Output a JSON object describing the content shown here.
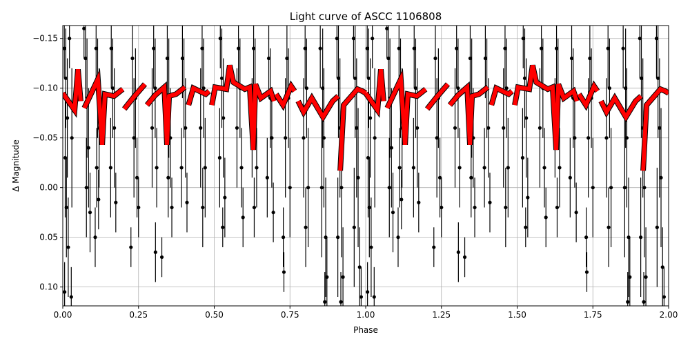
{
  "chart_data": {
    "type": "scatter",
    "title": "Light curve of ASCC 1106808",
    "xlabel": "Phase",
    "ylabel": "Δ Magnitude",
    "xlim": [
      0,
      2
    ],
    "ylim": [
      0.119,
      -0.163
    ],
    "y_inverted": true,
    "grid": true,
    "x_ticks": [
      "0.00",
      "0.25",
      "0.50",
      "0.75",
      "1.00",
      "1.25",
      "1.50",
      "1.75",
      "2.00"
    ],
    "x_tick_values": [
      0,
      0.25,
      0.5,
      0.75,
      1,
      1.25,
      1.5,
      1.75,
      2
    ],
    "y_ticks": [
      "−0.15",
      "−0.10",
      "−0.05",
      "0.00",
      "0.05",
      "0.10"
    ],
    "y_tick_values": [
      -0.15,
      -0.1,
      -0.05,
      0,
      0.05,
      0.1
    ],
    "colors": {
      "data": "#000000",
      "model": "#ff0000",
      "grid": "#b0b0b0"
    },
    "series": [
      {
        "kind": "data-with-errorbars",
        "repeat_period": 1,
        "points": [
          [
            0.005,
            -0.14,
            0.03
          ],
          [
            0.01,
            -0.11,
            0.05
          ],
          [
            0.015,
            -0.07,
            0.06
          ],
          [
            0.008,
            -0.03,
            0.06
          ],
          [
            0.012,
            0.02,
            0.05
          ],
          [
            0.018,
            0.06,
            0.05
          ],
          [
            0.006,
            0.105,
            0.03
          ],
          [
            0.028,
            0.11,
            0.03
          ],
          [
            0.022,
            -0.15,
            0.03
          ],
          [
            0.03,
            -0.05,
            0.07
          ],
          [
            0.075,
            -0.13,
            0.04
          ],
          [
            0.08,
            -0.09,
            0.06
          ],
          [
            0.085,
            -0.04,
            0.06
          ],
          [
            0.078,
            0.0,
            0.05
          ],
          [
            0.09,
            0.025,
            0.04
          ],
          [
            0.07,
            -0.16,
            0.03
          ],
          [
            0.11,
            -0.14,
            0.04
          ],
          [
            0.115,
            -0.1,
            0.05
          ],
          [
            0.12,
            -0.06,
            0.06
          ],
          [
            0.112,
            -0.02,
            0.04
          ],
          [
            0.118,
            0.012,
            0.03
          ],
          [
            0.107,
            0.05,
            0.03
          ],
          [
            0.16,
            -0.14,
            0.04
          ],
          [
            0.165,
            -0.1,
            0.05
          ],
          [
            0.17,
            -0.06,
            0.06
          ],
          [
            0.158,
            -0.02,
            0.05
          ],
          [
            0.175,
            0.015,
            0.03
          ],
          [
            0.23,
            -0.13,
            0.04
          ],
          [
            0.24,
            -0.09,
            0.05
          ],
          [
            0.235,
            -0.05,
            0.06
          ],
          [
            0.245,
            -0.01,
            0.04
          ],
          [
            0.25,
            0.02,
            0.03
          ],
          [
            0.225,
            0.06,
            0.02
          ],
          [
            0.3,
            -0.14,
            0.04
          ],
          [
            0.305,
            -0.1,
            0.05
          ],
          [
            0.295,
            -0.06,
            0.06
          ],
          [
            0.31,
            -0.02,
            0.04
          ],
          [
            0.306,
            0.065,
            0.03
          ],
          [
            0.327,
            0.07,
            0.02
          ],
          [
            0.345,
            -0.13,
            0.04
          ],
          [
            0.35,
            -0.09,
            0.06
          ],
          [
            0.355,
            -0.05,
            0.05
          ],
          [
            0.348,
            -0.01,
            0.04
          ],
          [
            0.36,
            0.02,
            0.03
          ],
          [
            0.395,
            -0.13,
            0.04
          ],
          [
            0.4,
            -0.1,
            0.05
          ],
          [
            0.405,
            -0.06,
            0.05
          ],
          [
            0.392,
            -0.02,
            0.04
          ],
          [
            0.41,
            0.015,
            0.03
          ],
          [
            0.46,
            -0.14,
            0.04
          ],
          [
            0.465,
            -0.1,
            0.05
          ],
          [
            0.455,
            -0.06,
            0.06
          ],
          [
            0.47,
            -0.02,
            0.05
          ],
          [
            0.462,
            0.02,
            0.04
          ],
          [
            0.52,
            -0.15,
            0.03
          ],
          [
            0.525,
            -0.11,
            0.05
          ],
          [
            0.53,
            -0.07,
            0.06
          ],
          [
            0.518,
            -0.03,
            0.05
          ],
          [
            0.535,
            0.01,
            0.04
          ],
          [
            0.528,
            0.04,
            0.02
          ],
          [
            0.58,
            -0.14,
            0.04
          ],
          [
            0.585,
            -0.1,
            0.05
          ],
          [
            0.575,
            -0.06,
            0.06
          ],
          [
            0.59,
            -0.02,
            0.04
          ],
          [
            0.595,
            0.03,
            0.03
          ],
          [
            0.63,
            -0.14,
            0.04
          ],
          [
            0.635,
            -0.1,
            0.05
          ],
          [
            0.625,
            -0.06,
            0.05
          ],
          [
            0.64,
            -0.02,
            0.04
          ],
          [
            0.632,
            0.02,
            0.03
          ],
          [
            0.68,
            -0.13,
            0.04
          ],
          [
            0.685,
            -0.09,
            0.05
          ],
          [
            0.69,
            -0.05,
            0.05
          ],
          [
            0.675,
            -0.01,
            0.04
          ],
          [
            0.695,
            0.025,
            0.03
          ],
          [
            0.74,
            -0.13,
            0.04
          ],
          [
            0.745,
            -0.09,
            0.05
          ],
          [
            0.735,
            -0.05,
            0.06
          ],
          [
            0.75,
            0.0,
            0.05
          ],
          [
            0.728,
            0.05,
            0.03
          ],
          [
            0.73,
            0.085,
            0.02
          ],
          [
            0.8,
            -0.14,
            0.04
          ],
          [
            0.805,
            -0.1,
            0.05
          ],
          [
            0.795,
            -0.05,
            0.06
          ],
          [
            0.81,
            0.0,
            0.06
          ],
          [
            0.802,
            0.04,
            0.04
          ],
          [
            0.85,
            -0.14,
            0.04
          ],
          [
            0.858,
            -0.1,
            0.06
          ],
          [
            0.862,
            -0.05,
            0.07
          ],
          [
            0.855,
            0.0,
            0.07
          ],
          [
            0.868,
            0.05,
            0.06
          ],
          [
            0.872,
            0.09,
            0.04
          ],
          [
            0.865,
            0.115,
            0.03
          ],
          [
            0.905,
            -0.15,
            0.04
          ],
          [
            0.91,
            -0.11,
            0.06
          ],
          [
            0.915,
            -0.06,
            0.07
          ],
          [
            0.92,
            0.0,
            0.07
          ],
          [
            0.908,
            0.05,
            0.06
          ],
          [
            0.925,
            0.09,
            0.05
          ],
          [
            0.918,
            0.115,
            0.03
          ],
          [
            0.96,
            -0.15,
            0.04
          ],
          [
            0.965,
            -0.11,
            0.06
          ],
          [
            0.97,
            -0.06,
            0.07
          ],
          [
            0.975,
            -0.01,
            0.07
          ],
          [
            0.962,
            0.04,
            0.06
          ],
          [
            0.98,
            0.08,
            0.04
          ],
          [
            0.985,
            0.11,
            0.03
          ]
        ]
      },
      {
        "kind": "model",
        "repeat_period": 1,
        "segments": [
          [
            [
              0.0,
              -0.095
            ],
            [
              0.039,
              -0.078
            ],
            [
              0.05,
              -0.119
            ],
            [
              0.059,
              -0.087
            ]
          ],
          [
            [
              0.071,
              -0.08
            ],
            [
              0.116,
              -0.109
            ],
            [
              0.13,
              -0.043
            ],
            [
              0.139,
              -0.094
            ],
            [
              0.169,
              -0.092
            ],
            [
              0.198,
              -0.099
            ]
          ],
          [
            [
              0.203,
              -0.079
            ],
            [
              0.237,
              -0.092
            ],
            [
              0.271,
              -0.104
            ]
          ],
          [
            [
              0.278,
              -0.083
            ],
            [
              0.305,
              -0.093
            ],
            [
              0.335,
              -0.101
            ],
            [
              0.344,
              -0.043
            ],
            [
              0.351,
              -0.092
            ],
            [
              0.374,
              -0.094
            ],
            [
              0.403,
              -0.101
            ]
          ],
          [
            [
              0.415,
              -0.083
            ],
            [
              0.431,
              -0.1
            ],
            [
              0.472,
              -0.094
            ],
            [
              0.483,
              -0.097
            ]
          ],
          [
            [
              0.492,
              -0.083
            ],
            [
              0.503,
              -0.101
            ],
            [
              0.54,
              -0.099
            ],
            [
              0.551,
              -0.123
            ],
            [
              0.563,
              -0.106
            ],
            [
              0.601,
              -0.099
            ],
            [
              0.617,
              -0.101
            ],
            [
              0.629,
              -0.038
            ],
            [
              0.636,
              -0.104
            ],
            [
              0.654,
              -0.09
            ],
            [
              0.686,
              -0.097
            ],
            [
              0.697,
              -0.087
            ]
          ],
          [
            [
              0.704,
              -0.094
            ],
            [
              0.727,
              -0.083
            ],
            [
              0.754,
              -0.102
            ],
            [
              0.765,
              -0.097
            ]
          ],
          [
            [
              0.777,
              -0.087
            ],
            [
              0.795,
              -0.076
            ],
            [
              0.822,
              -0.09
            ],
            [
              0.859,
              -0.071
            ],
            [
              0.891,
              -0.087
            ],
            [
              0.909,
              -0.092
            ]
          ],
          [
            [
              0.916,
              -0.017
            ],
            [
              0.927,
              -0.083
            ],
            [
              0.973,
              -0.099
            ],
            [
              0.989,
              -0.097
            ],
            [
              1.0,
              -0.095
            ]
          ]
        ]
      }
    ]
  }
}
